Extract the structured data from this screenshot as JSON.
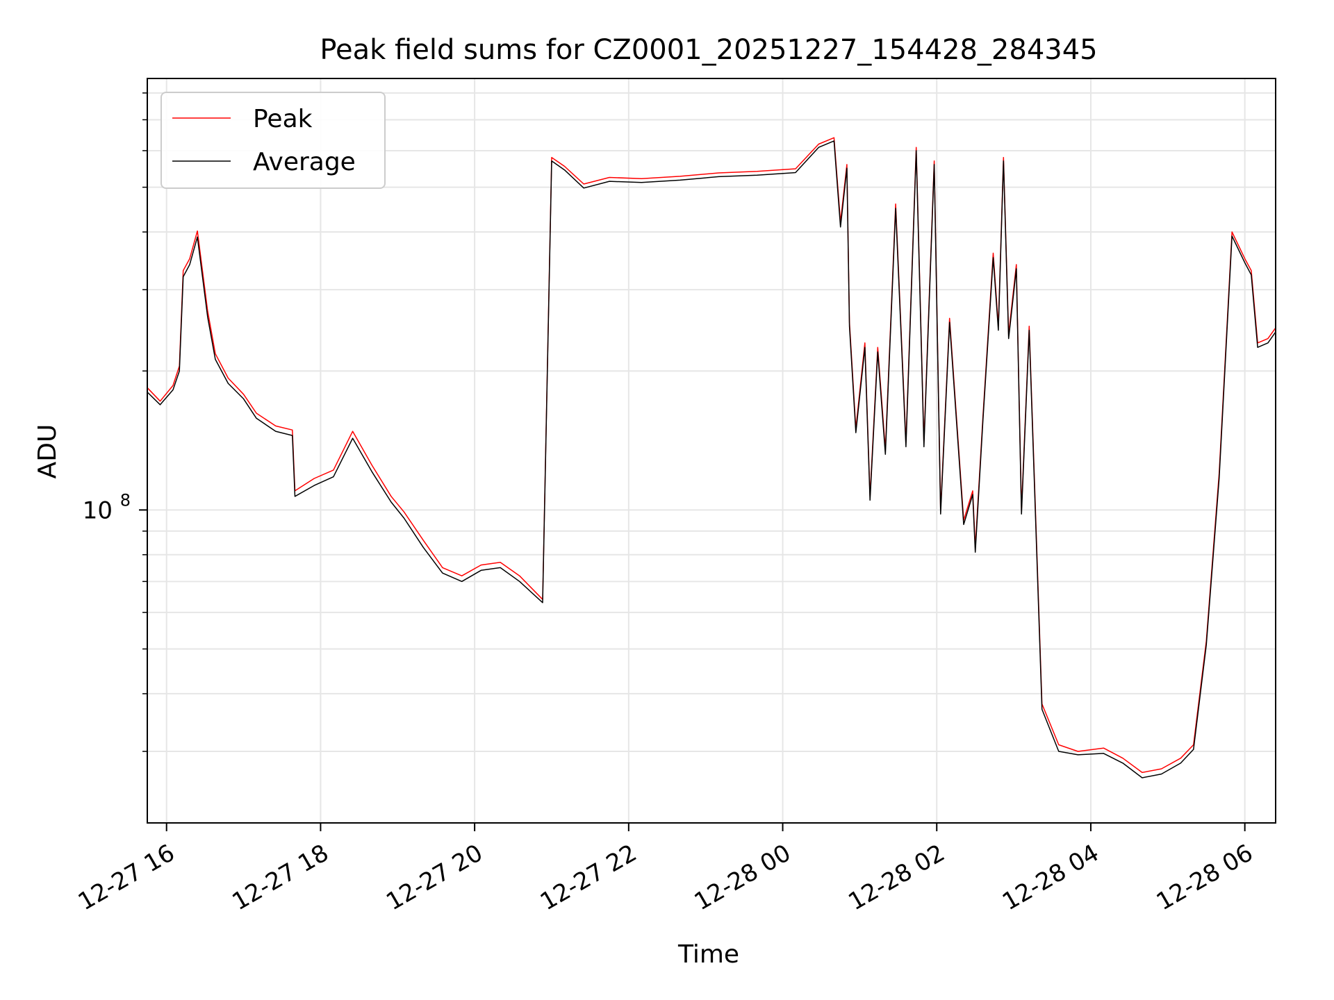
{
  "chart_data": {
    "type": "line",
    "title": "Peak field sums for CZ0001_20251227_154428_284345",
    "xlabel": "Time",
    "ylabel": "ADU",
    "yscale": "log",
    "grid": true,
    "legend_position": "upper-left",
    "xlim": [
      "2025-12-27 15:45",
      "2025-12-28 06:24"
    ],
    "ylim": [
      21000000,
      860000000
    ],
    "x_ticks": [
      {
        "value": "2025-12-27 16:00",
        "label": "12-27 16"
      },
      {
        "value": "2025-12-27 18:00",
        "label": "12-27 18"
      },
      {
        "value": "2025-12-27 20:00",
        "label": "12-27 20"
      },
      {
        "value": "2025-12-27 22:00",
        "label": "12-27 22"
      },
      {
        "value": "2025-12-28 00:00",
        "label": "12-28 00"
      },
      {
        "value": "2025-12-28 02:00",
        "label": "12-28 02"
      },
      {
        "value": "2025-12-28 04:00",
        "label": "12-28 04"
      },
      {
        "value": "2025-12-28 06:00",
        "label": "12-28 06"
      }
    ],
    "y_ticks": [
      {
        "value": 100000000,
        "label_base": "10",
        "label_exp": "8"
      }
    ],
    "y_minor_ticks": [
      20000000,
      30000000,
      40000000,
      50000000,
      60000000,
      70000000,
      80000000,
      90000000,
      200000000,
      300000000,
      400000000,
      500000000,
      600000000,
      700000000,
      800000000
    ],
    "colors": {
      "Peak": "#ff0000",
      "Average": "#000000",
      "grid": "#e6e6e6"
    },
    "series": [
      {
        "name": "Peak",
        "color": "#ff0000",
        "points": [
          [
            "2025-12-27 15:45",
            184000000
          ],
          [
            "2025-12-27 15:55",
            172000000
          ],
          [
            "2025-12-27 16:05",
            186000000
          ],
          [
            "2025-12-27 16:10",
            205000000
          ],
          [
            "2025-12-27 16:13",
            330000000
          ],
          [
            "2025-12-27 16:18",
            350000000
          ],
          [
            "2025-12-27 16:24",
            402000000
          ],
          [
            "2025-12-27 16:32",
            270000000
          ],
          [
            "2025-12-27 16:38",
            218000000
          ],
          [
            "2025-12-27 16:48",
            193000000
          ],
          [
            "2025-12-27 17:00",
            178000000
          ],
          [
            "2025-12-27 17:10",
            162000000
          ],
          [
            "2025-12-27 17:25",
            152000000
          ],
          [
            "2025-12-27 17:38",
            149000000
          ],
          [
            "2025-12-27 17:40",
            110000000
          ],
          [
            "2025-12-27 17:55",
            117000000
          ],
          [
            "2025-12-27 18:10",
            122000000
          ],
          [
            "2025-12-27 18:25",
            148000000
          ],
          [
            "2025-12-27 18:40",
            125000000
          ],
          [
            "2025-12-27 18:55",
            107000000
          ],
          [
            "2025-12-27 19:05",
            99000000
          ],
          [
            "2025-12-27 19:20",
            86000000
          ],
          [
            "2025-12-27 19:35",
            75000000
          ],
          [
            "2025-12-27 19:50",
            72000000
          ],
          [
            "2025-12-27 20:05",
            76000000
          ],
          [
            "2025-12-27 20:20",
            77000000
          ],
          [
            "2025-12-27 20:35",
            72000000
          ],
          [
            "2025-12-27 20:53",
            64000000
          ],
          [
            "2025-12-27 21:00",
            580000000
          ],
          [
            "2025-12-27 21:10",
            555000000
          ],
          [
            "2025-12-27 21:25",
            508000000
          ],
          [
            "2025-12-27 21:45",
            525000000
          ],
          [
            "2025-12-27 22:10",
            522000000
          ],
          [
            "2025-12-27 22:40",
            528000000
          ],
          [
            "2025-12-27 23:10",
            537000000
          ],
          [
            "2025-12-27 23:40",
            541000000
          ],
          [
            "2025-12-28 00:10",
            548000000
          ],
          [
            "2025-12-28 00:28",
            620000000
          ],
          [
            "2025-12-28 00:40",
            640000000
          ],
          [
            "2025-12-28 00:45",
            420000000
          ],
          [
            "2025-12-28 00:50",
            560000000
          ],
          [
            "2025-12-28 00:52",
            255000000
          ],
          [
            "2025-12-28 00:57",
            150000000
          ],
          [
            "2025-12-28 01:04",
            230000000
          ],
          [
            "2025-12-28 01:08",
            107000000
          ],
          [
            "2025-12-28 01:14",
            225000000
          ],
          [
            "2025-12-28 01:20",
            135000000
          ],
          [
            "2025-12-28 01:28",
            460000000
          ],
          [
            "2025-12-28 01:36",
            140000000
          ],
          [
            "2025-12-28 01:44",
            610000000
          ],
          [
            "2025-12-28 01:50",
            140000000
          ],
          [
            "2025-12-28 01:58",
            570000000
          ],
          [
            "2025-12-28 02:03",
            100000000
          ],
          [
            "2025-12-28 02:10",
            260000000
          ],
          [
            "2025-12-28 02:16",
            150000000
          ],
          [
            "2025-12-28 02:21",
            95000000
          ],
          [
            "2025-12-28 02:28",
            110000000
          ],
          [
            "2025-12-28 02:30",
            83000000
          ],
          [
            "2025-12-28 02:36",
            160000000
          ],
          [
            "2025-12-28 02:44",
            360000000
          ],
          [
            "2025-12-28 02:48",
            250000000
          ],
          [
            "2025-12-28 02:52",
            580000000
          ],
          [
            "2025-12-28 02:56",
            240000000
          ],
          [
            "2025-12-28 03:02",
            340000000
          ],
          [
            "2025-12-28 03:06",
            100000000
          ],
          [
            "2025-12-28 03:12",
            250000000
          ],
          [
            "2025-12-28 03:16",
            118000000
          ],
          [
            "2025-12-28 03:22",
            38000000
          ],
          [
            "2025-12-28 03:35",
            31000000
          ],
          [
            "2025-12-28 03:50",
            30000000
          ],
          [
            "2025-12-28 04:10",
            30500000
          ],
          [
            "2025-12-28 04:25",
            29000000
          ],
          [
            "2025-12-28 04:40",
            27000000
          ],
          [
            "2025-12-28 04:55",
            27500000
          ],
          [
            "2025-12-28 05:10",
            29000000
          ],
          [
            "2025-12-28 05:20",
            31000000
          ],
          [
            "2025-12-28 05:30",
            52000000
          ],
          [
            "2025-12-28 05:40",
            120000000
          ],
          [
            "2025-12-28 05:50",
            400000000
          ],
          [
            "2025-12-28 06:00",
            350000000
          ],
          [
            "2025-12-28 06:05",
            330000000
          ],
          [
            "2025-12-28 06:10",
            230000000
          ],
          [
            "2025-12-28 06:18",
            235000000
          ],
          [
            "2025-12-28 06:24",
            248000000
          ]
        ]
      },
      {
        "name": "Average",
        "color": "#000000",
        "points": [
          [
            "2025-12-27 15:45",
            180000000
          ],
          [
            "2025-12-27 15:55",
            169000000
          ],
          [
            "2025-12-27 16:05",
            182000000
          ],
          [
            "2025-12-27 16:10",
            200000000
          ],
          [
            "2025-12-27 16:13",
            320000000
          ],
          [
            "2025-12-27 16:18",
            340000000
          ],
          [
            "2025-12-27 16:24",
            390000000
          ],
          [
            "2025-12-27 16:32",
            262000000
          ],
          [
            "2025-12-27 16:38",
            212000000
          ],
          [
            "2025-12-27 16:48",
            188000000
          ],
          [
            "2025-12-27 17:00",
            174000000
          ],
          [
            "2025-12-27 17:10",
            158000000
          ],
          [
            "2025-12-27 17:25",
            148000000
          ],
          [
            "2025-12-27 17:38",
            145000000
          ],
          [
            "2025-12-27 17:40",
            107000000
          ],
          [
            "2025-12-27 17:55",
            113000000
          ],
          [
            "2025-12-27 18:10",
            118000000
          ],
          [
            "2025-12-27 18:25",
            143000000
          ],
          [
            "2025-12-27 18:40",
            121000000
          ],
          [
            "2025-12-27 18:55",
            104000000
          ],
          [
            "2025-12-27 19:05",
            96000000
          ],
          [
            "2025-12-27 19:20",
            83000000
          ],
          [
            "2025-12-27 19:35",
            73000000
          ],
          [
            "2025-12-27 19:50",
            70000000
          ],
          [
            "2025-12-27 20:05",
            74000000
          ],
          [
            "2025-12-27 20:20",
            75000000
          ],
          [
            "2025-12-27 20:35",
            70000000
          ],
          [
            "2025-12-27 20:53",
            63000000
          ],
          [
            "2025-12-27 21:00",
            570000000
          ],
          [
            "2025-12-27 21:10",
            545000000
          ],
          [
            "2025-12-27 21:25",
            498000000
          ],
          [
            "2025-12-27 21:45",
            515000000
          ],
          [
            "2025-12-27 22:10",
            512000000
          ],
          [
            "2025-12-27 22:40",
            518000000
          ],
          [
            "2025-12-27 23:10",
            527000000
          ],
          [
            "2025-12-27 23:40",
            531000000
          ],
          [
            "2025-12-28 00:10",
            538000000
          ],
          [
            "2025-12-28 00:28",
            610000000
          ],
          [
            "2025-12-28 00:40",
            630000000
          ],
          [
            "2025-12-28 00:45",
            410000000
          ],
          [
            "2025-12-28 00:50",
            550000000
          ],
          [
            "2025-12-28 00:52",
            250000000
          ],
          [
            "2025-12-28 00:57",
            147000000
          ],
          [
            "2025-12-28 01:04",
            225000000
          ],
          [
            "2025-12-28 01:08",
            105000000
          ],
          [
            "2025-12-28 01:14",
            220000000
          ],
          [
            "2025-12-28 01:20",
            132000000
          ],
          [
            "2025-12-28 01:28",
            450000000
          ],
          [
            "2025-12-28 01:36",
            137000000
          ],
          [
            "2025-12-28 01:44",
            600000000
          ],
          [
            "2025-12-28 01:50",
            137000000
          ],
          [
            "2025-12-28 01:58",
            560000000
          ],
          [
            "2025-12-28 02:03",
            98000000
          ],
          [
            "2025-12-28 02:10",
            255000000
          ],
          [
            "2025-12-28 02:16",
            147000000
          ],
          [
            "2025-12-28 02:21",
            93000000
          ],
          [
            "2025-12-28 02:28",
            108000000
          ],
          [
            "2025-12-28 02:30",
            81000000
          ],
          [
            "2025-12-28 02:36",
            157000000
          ],
          [
            "2025-12-28 02:44",
            352000000
          ],
          [
            "2025-12-28 02:48",
            245000000
          ],
          [
            "2025-12-28 02:52",
            570000000
          ],
          [
            "2025-12-28 02:56",
            235000000
          ],
          [
            "2025-12-28 03:02",
            333000000
          ],
          [
            "2025-12-28 03:06",
            98000000
          ],
          [
            "2025-12-28 03:12",
            245000000
          ],
          [
            "2025-12-28 03:16",
            115000000
          ],
          [
            "2025-12-28 03:22",
            37000000
          ],
          [
            "2025-12-28 03:35",
            30000000
          ],
          [
            "2025-12-28 03:50",
            29500000
          ],
          [
            "2025-12-28 04:10",
            29700000
          ],
          [
            "2025-12-28 04:25",
            28300000
          ],
          [
            "2025-12-28 04:40",
            26300000
          ],
          [
            "2025-12-28 04:55",
            26800000
          ],
          [
            "2025-12-28 05:10",
            28300000
          ],
          [
            "2025-12-28 05:20",
            30300000
          ],
          [
            "2025-12-28 05:30",
            51000000
          ],
          [
            "2025-12-28 05:40",
            117000000
          ],
          [
            "2025-12-28 05:50",
            392000000
          ],
          [
            "2025-12-28 06:00",
            343000000
          ],
          [
            "2025-12-28 06:05",
            323000000
          ],
          [
            "2025-12-28 06:10",
            225000000
          ],
          [
            "2025-12-28 06:18",
            230000000
          ],
          [
            "2025-12-28 06:24",
            243000000
          ]
        ]
      }
    ]
  }
}
